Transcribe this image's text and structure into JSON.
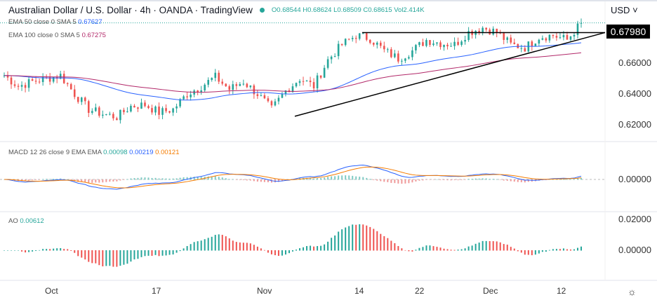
{
  "header": {
    "title": "Australian Dollar / U.S. Dollar · 4h · OANDA · TradingView",
    "ohlc": {
      "open": "O0.68544",
      "high": "H0.68624",
      "low": "L0.68509",
      "close": "C0.68615",
      "volume": "Vol2.414K"
    }
  },
  "legends": {
    "ema50": {
      "label": "EMA 50 close 0 SMA 5",
      "value": "0.67627",
      "color": "#2962ff"
    },
    "ema100": {
      "label": "EMA 100 close 0 SMA 5",
      "value": "0.67275",
      "color": "#b22869"
    },
    "macd": {
      "label": "MACD 12 26 close 9 EMA EMA",
      "hist": "0.00098",
      "macd": "0.00219",
      "signal": "0.00121"
    },
    "ao": {
      "label": "AO",
      "value": "0.00612"
    }
  },
  "price_axis": {
    "currency": "USD",
    "current_tag": "0.67980",
    "ticks": [
      "0.66000",
      "0.64000",
      "0.62000"
    ],
    "macd_ticks": [
      "0.00000"
    ],
    "ao_ticks": [
      "0.02000",
      "0.00000"
    ]
  },
  "time_axis": [
    "Oct",
    "17",
    "Nov",
    "14",
    "22",
    "Dec",
    "12"
  ],
  "colors": {
    "up": "#26a69a",
    "down": "#ef5350"
  },
  "chart_data": {
    "type": "candlestick",
    "closes": [
      0.652,
      0.645,
      0.648,
      0.65,
      0.652,
      0.64,
      0.63,
      0.627,
      0.625,
      0.632,
      0.633,
      0.628,
      0.63,
      0.64,
      0.645,
      0.651,
      0.643,
      0.648,
      0.64,
      0.63,
      0.642,
      0.65,
      0.645,
      0.662,
      0.672,
      0.678,
      0.676,
      0.668,
      0.663,
      0.668,
      0.675,
      0.673,
      0.672,
      0.68,
      0.683,
      0.68,
      0.672,
      0.67,
      0.677,
      0.678,
      0.675,
      0.686
    ],
    "lines": [
      {
        "type": "horizontal",
        "price": 0.6798
      },
      {
        "type": "trend",
        "from": 0.6255,
        "to": 0.6798
      }
    ]
  }
}
